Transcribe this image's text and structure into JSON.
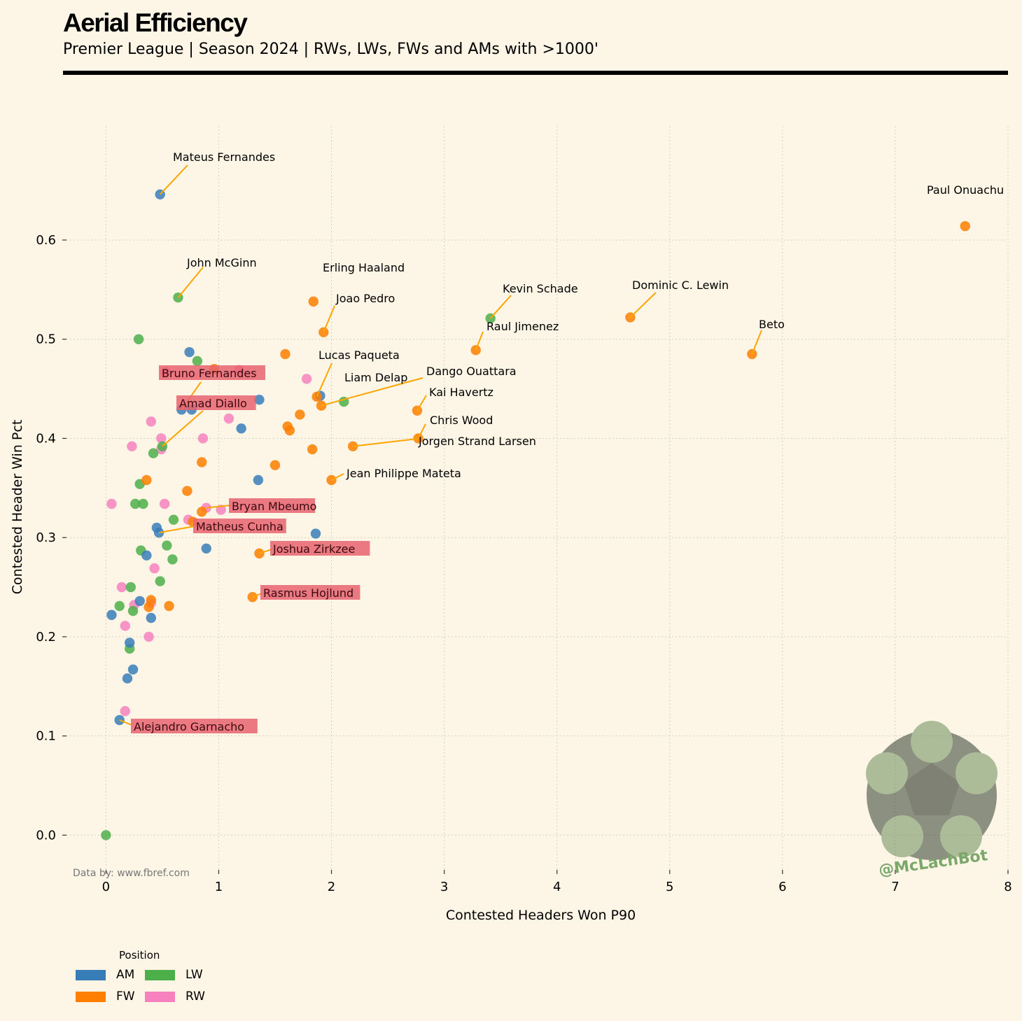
{
  "title": "Aerial Efficiency",
  "subtitle": "Premier League | Season 2024 | RWs, LWs, FWs and AMs with >1000'",
  "source_note": "Data by: www.fbref.com",
  "watermark_text": "@McLachBot",
  "legend": {
    "title": "Position",
    "items": [
      {
        "label": "AM",
        "color": "#377eb8"
      },
      {
        "label": "FW",
        "color": "#ff7f00"
      },
      {
        "label": "LW",
        "color": "#4daf4a"
      },
      {
        "label": "RW",
        "color": "#f781bf"
      }
    ]
  },
  "chart_data": {
    "type": "scatter",
    "xlabel": "Contested Headers Won P90",
    "ylabel": "Contested Header Win Pct",
    "xlim": [
      -0.35,
      8.0
    ],
    "ylim": [
      -0.035,
      0.715
    ],
    "xticks": [
      "0",
      "1",
      "2",
      "3",
      "4",
      "5",
      "6",
      "7",
      "8"
    ],
    "yticks": [
      "0.0",
      "0.1",
      "0.2",
      "0.3",
      "0.4",
      "0.5",
      "0.6"
    ],
    "grid": true,
    "legend_position": "bottom-left",
    "colors": {
      "AM": "#377eb8",
      "FW": "#ff7f00",
      "LW": "#4daf4a",
      "RW": "#f781bf",
      "highlight": "#e8636f",
      "leader": "#ffa500"
    },
    "points": [
      {
        "x": 0.48,
        "y": 0.646,
        "pos": "AM",
        "name": "Mateus Fernandes"
      },
      {
        "x": 7.62,
        "y": 0.614,
        "pos": "FW",
        "name": "Paul Onuachu"
      },
      {
        "x": 0.64,
        "y": 0.542,
        "pos": "LW",
        "name": "John McGinn"
      },
      {
        "x": 1.84,
        "y": 0.538,
        "pos": "FW",
        "name": "Erling Haaland"
      },
      {
        "x": 3.41,
        "y": 0.521,
        "pos": "LW",
        "name": "Kevin Schade"
      },
      {
        "x": 4.65,
        "y": 0.522,
        "pos": "FW",
        "name": "Dominic C. Lewin"
      },
      {
        "x": 1.93,
        "y": 0.507,
        "pos": "FW",
        "name": "Joao Pedro"
      },
      {
        "x": 3.28,
        "y": 0.489,
        "pos": "FW",
        "name": "Raul Jimenez"
      },
      {
        "x": 5.73,
        "y": 0.485,
        "pos": "FW",
        "name": "Beto"
      },
      {
        "x": 1.87,
        "y": 0.442,
        "pos": "FW",
        "name": "Lucas Paqueta"
      },
      {
        "x": 1.91,
        "y": 0.433,
        "pos": "FW",
        "name": "Dango Ouattara"
      },
      {
        "x": 2.11,
        "y": 0.437,
        "pos": "LW",
        "name": "Liam Delap"
      },
      {
        "x": 2.76,
        "y": 0.428,
        "pos": "FW",
        "name": "Kai Havertz"
      },
      {
        "x": 2.77,
        "y": 0.4,
        "pos": "FW",
        "name": "Chris Wood"
      },
      {
        "x": 2.19,
        "y": 0.392,
        "pos": "FW",
        "name": "Jorgen Strand Larsen"
      },
      {
        "x": 2.0,
        "y": 0.358,
        "pos": "FW",
        "name": "Jean Philippe Mateta"
      },
      {
        "x": 0.67,
        "y": 0.429,
        "pos": "AM",
        "name": "Bruno Fernandes",
        "highlight": true
      },
      {
        "x": 0.5,
        "y": 0.392,
        "pos": "LW",
        "name": "Amad Diallo",
        "highlight": true
      },
      {
        "x": 0.89,
        "y": 0.33,
        "pos": "RW",
        "name": "Bryan Mbeumo",
        "highlight": true
      },
      {
        "x": 0.47,
        "y": 0.305,
        "pos": "AM",
        "name": "Matheus Cunha",
        "highlight": true
      },
      {
        "x": 1.36,
        "y": 0.284,
        "pos": "FW",
        "name": "Joshua Zirkzee",
        "highlight": true
      },
      {
        "x": 1.3,
        "y": 0.24,
        "pos": "FW",
        "name": "Rasmus Hojlund",
        "highlight": true
      },
      {
        "x": 0.12,
        "y": 0.116,
        "pos": "AM",
        "name": "Alejandro Garnacho",
        "highlight": true
      },
      {
        "x": 0.29,
        "y": 0.5,
        "pos": "LW"
      },
      {
        "x": 0.74,
        "y": 0.487,
        "pos": "AM"
      },
      {
        "x": 0.81,
        "y": 0.478,
        "pos": "LW"
      },
      {
        "x": 0.96,
        "y": 0.47,
        "pos": "FW"
      },
      {
        "x": 0.53,
        "y": 0.467,
        "pos": "RW"
      },
      {
        "x": 1.18,
        "y": 0.469,
        "pos": "RW"
      },
      {
        "x": 1.59,
        "y": 0.485,
        "pos": "FW"
      },
      {
        "x": 1.78,
        "y": 0.46,
        "pos": "RW"
      },
      {
        "x": 1.36,
        "y": 0.439,
        "pos": "AM"
      },
      {
        "x": 1.9,
        "y": 0.443,
        "pos": "AM"
      },
      {
        "x": 0.76,
        "y": 0.429,
        "pos": "AM"
      },
      {
        "x": 1.72,
        "y": 0.424,
        "pos": "FW"
      },
      {
        "x": 1.09,
        "y": 0.42,
        "pos": "RW"
      },
      {
        "x": 0.4,
        "y": 0.417,
        "pos": "RW"
      },
      {
        "x": 1.61,
        "y": 0.412,
        "pos": "FW"
      },
      {
        "x": 1.63,
        "y": 0.408,
        "pos": "FW"
      },
      {
        "x": 1.2,
        "y": 0.41,
        "pos": "AM"
      },
      {
        "x": 0.49,
        "y": 0.4,
        "pos": "RW"
      },
      {
        "x": 0.86,
        "y": 0.4,
        "pos": "RW"
      },
      {
        "x": 0.23,
        "y": 0.392,
        "pos": "RW"
      },
      {
        "x": 0.49,
        "y": 0.389,
        "pos": "RW"
      },
      {
        "x": 0.42,
        "y": 0.385,
        "pos": "LW"
      },
      {
        "x": 1.83,
        "y": 0.389,
        "pos": "FW"
      },
      {
        "x": 0.85,
        "y": 0.376,
        "pos": "FW"
      },
      {
        "x": 1.5,
        "y": 0.373,
        "pos": "FW"
      },
      {
        "x": 0.36,
        "y": 0.358,
        "pos": "FW"
      },
      {
        "x": 1.35,
        "y": 0.358,
        "pos": "AM"
      },
      {
        "x": 0.3,
        "y": 0.354,
        "pos": "LW"
      },
      {
        "x": 0.72,
        "y": 0.347,
        "pos": "FW"
      },
      {
        "x": 0.05,
        "y": 0.334,
        "pos": "RW"
      },
      {
        "x": 0.26,
        "y": 0.334,
        "pos": "LW"
      },
      {
        "x": 0.33,
        "y": 0.334,
        "pos": "LW"
      },
      {
        "x": 0.52,
        "y": 0.334,
        "pos": "RW"
      },
      {
        "x": 1.02,
        "y": 0.328,
        "pos": "RW"
      },
      {
        "x": 0.85,
        "y": 0.326,
        "pos": "FW"
      },
      {
        "x": 0.6,
        "y": 0.318,
        "pos": "LW"
      },
      {
        "x": 0.73,
        "y": 0.318,
        "pos": "RW"
      },
      {
        "x": 0.77,
        "y": 0.316,
        "pos": "FW"
      },
      {
        "x": 0.45,
        "y": 0.31,
        "pos": "AM"
      },
      {
        "x": 1.86,
        "y": 0.304,
        "pos": "AM"
      },
      {
        "x": 0.54,
        "y": 0.292,
        "pos": "LW"
      },
      {
        "x": 0.89,
        "y": 0.289,
        "pos": "AM"
      },
      {
        "x": 0.31,
        "y": 0.287,
        "pos": "LW"
      },
      {
        "x": 0.36,
        "y": 0.282,
        "pos": "AM"
      },
      {
        "x": 0.59,
        "y": 0.278,
        "pos": "LW"
      },
      {
        "x": 0.43,
        "y": 0.269,
        "pos": "RW"
      },
      {
        "x": 0.48,
        "y": 0.256,
        "pos": "LW"
      },
      {
        "x": 0.14,
        "y": 0.25,
        "pos": "RW"
      },
      {
        "x": 0.22,
        "y": 0.25,
        "pos": "LW"
      },
      {
        "x": 0.3,
        "y": 0.236,
        "pos": "AM"
      },
      {
        "x": 0.4,
        "y": 0.237,
        "pos": "FW"
      },
      {
        "x": 0.12,
        "y": 0.231,
        "pos": "LW"
      },
      {
        "x": 0.25,
        "y": 0.232,
        "pos": "RW"
      },
      {
        "x": 0.38,
        "y": 0.23,
        "pos": "FW"
      },
      {
        "x": 0.56,
        "y": 0.231,
        "pos": "FW"
      },
      {
        "x": 0.4,
        "y": 0.234,
        "pos": "RW"
      },
      {
        "x": 0.24,
        "y": 0.226,
        "pos": "LW"
      },
      {
        "x": 0.05,
        "y": 0.222,
        "pos": "AM"
      },
      {
        "x": 0.4,
        "y": 0.219,
        "pos": "AM"
      },
      {
        "x": 0.17,
        "y": 0.211,
        "pos": "RW"
      },
      {
        "x": 0.38,
        "y": 0.2,
        "pos": "RW"
      },
      {
        "x": 0.21,
        "y": 0.194,
        "pos": "AM"
      },
      {
        "x": 0.21,
        "y": 0.188,
        "pos": "LW"
      },
      {
        "x": 0.24,
        "y": 0.167,
        "pos": "AM"
      },
      {
        "x": 0.19,
        "y": 0.158,
        "pos": "AM"
      },
      {
        "x": 0.17,
        "y": 0.125,
        "pos": "RW"
      },
      {
        "x": 0.0,
        "y": 0.0,
        "pos": "LW"
      }
    ]
  }
}
